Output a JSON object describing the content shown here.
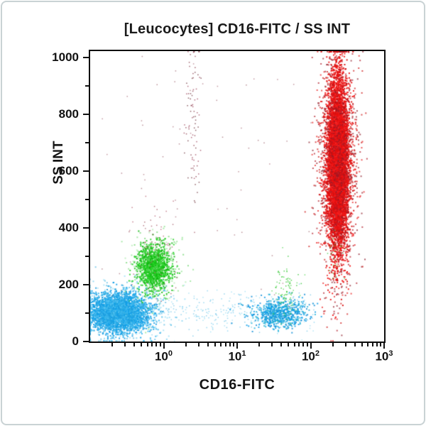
{
  "window": {
    "background": "#ffffff",
    "border_color": "#c9d2d4"
  },
  "colors": {
    "axis": "#111111",
    "text": "#1a1a1a",
    "frame": "#0d0d0d"
  },
  "chart_data": {
    "type": "scatter",
    "title": "[Leucocytes] CD16-FITC / SS INT",
    "xlabel": "CD16-FITC",
    "ylabel": "SS INT",
    "x_scale": "log",
    "x_range_log10": [
      -1,
      3
    ],
    "x_tick_base": "10",
    "x_tick_exponents": [
      0,
      1,
      2,
      3
    ],
    "ylim": [
      0,
      1023
    ],
    "y_ticks": [
      0,
      200,
      400,
      600,
      800,
      1000
    ],
    "y_minor_ticks": [
      100,
      300,
      500,
      700,
      900
    ],
    "grid": false,
    "legend": "none",
    "clusters": [
      {
        "name": "lymphocytes-core",
        "n": 3200,
        "size": 2,
        "alpha": 0.9,
        "x": {
          "dist": "gauss",
          "mean": -0.62,
          "sd": 0.2
        },
        "y": {
          "dist": "gauss",
          "mean": 100,
          "sd": 33
        },
        "shades": [
          "#0d9ee9",
          "#1e9fe0",
          "#3db8f0"
        ]
      },
      {
        "name": "lymphocytes-halo",
        "n": 600,
        "size": 2,
        "alpha": 0.55,
        "x": {
          "dist": "gauss",
          "mean": -0.55,
          "sd": 0.32
        },
        "y": {
          "dist": "gauss",
          "mean": 105,
          "sd": 52
        },
        "shades": [
          "#45c0ee",
          "#6fd2f4",
          "#2aa7db"
        ]
      },
      {
        "name": "monocytes-core",
        "n": 1100,
        "size": 2,
        "alpha": 0.9,
        "x": {
          "dist": "gauss",
          "mean": -0.13,
          "sd": 0.115
        },
        "y": {
          "dist": "gauss",
          "mean": 262,
          "sd": 40
        },
        "shades": [
          "#1ccb1c",
          "#2ed42e",
          "#0fb80f"
        ]
      },
      {
        "name": "monocytes-halo",
        "n": 280,
        "size": 2,
        "alpha": 0.5,
        "x": {
          "dist": "gauss",
          "mean": -0.12,
          "sd": 0.19
        },
        "y": {
          "dist": "gauss",
          "mean": 262,
          "sd": 62
        },
        "shades": [
          "#57d657",
          "#8ae28a",
          "#2ec42e"
        ]
      },
      {
        "name": "monocyte-dark-specks",
        "n": 70,
        "size": 1.5,
        "alpha": 0.6,
        "x": {
          "dist": "gauss",
          "mean": -0.12,
          "sd": 0.16
        },
        "y": {
          "dist": "gauss",
          "mean": 330,
          "sd": 80
        },
        "shades": [
          "#8a2a3a",
          "#a03048"
        ]
      },
      {
        "name": "nk-cells-core",
        "n": 650,
        "size": 2,
        "alpha": 0.85,
        "x": {
          "dist": "gauss",
          "mean": 1.57,
          "sd": 0.19
        },
        "y": {
          "dist": "gauss",
          "mean": 98,
          "sd": 26
        },
        "shades": [
          "#0d9ee9",
          "#2ab4d8",
          "#1590d8"
        ]
      },
      {
        "name": "nk-green-specks",
        "n": 90,
        "size": 1.5,
        "alpha": 0.8,
        "x": {
          "dist": "gauss",
          "mean": 1.67,
          "sd": 0.09
        },
        "y": {
          "dist": "gauss",
          "mean": 180,
          "sd": 52
        },
        "shades": [
          "#2bc42b",
          "#5ad65a"
        ]
      },
      {
        "name": "neutrophils-core",
        "n": 6500,
        "size": 2,
        "alpha": 0.95,
        "x": {
          "dist": "gauss",
          "mean": 2.37,
          "sd": 0.072
        },
        "y": {
          "dist": "gauss",
          "mean": 630,
          "sd": 150
        },
        "shades": [
          "#ee1111",
          "#f62222",
          "#da0e0e"
        ]
      },
      {
        "name": "neutrophils-halo",
        "n": 1600,
        "size": 2,
        "alpha": 0.7,
        "x": {
          "dist": "gauss",
          "mean": 2.37,
          "sd": 0.135
        },
        "y": {
          "dist": "gauss",
          "mean": 620,
          "sd": 205
        },
        "shades": [
          "#e81515",
          "#b01825",
          "#cc1010",
          "#8f1d2a"
        ]
      },
      {
        "name": "neutrophil-green-specks",
        "n": 25,
        "size": 1.5,
        "alpha": 0.7,
        "x": {
          "dist": "gauss",
          "mean": 2.33,
          "sd": 0.06
        },
        "y": {
          "dist": "gauss",
          "mean": 300,
          "sd": 45
        },
        "shades": [
          "#2bc42b",
          "#6cd86c"
        ]
      },
      {
        "name": "debris-column",
        "n": 85,
        "size": 1.5,
        "alpha": 0.7,
        "x": {
          "dist": "gauss",
          "mean": 0.4,
          "sd": 0.055
        },
        "y": {
          "dist": "gauss",
          "mean": 770,
          "sd": 165
        },
        "shades": [
          "#7a2535",
          "#93304a",
          "#611f2a"
        ]
      },
      {
        "name": "scattered-dark-events",
        "n": 70,
        "size": 1.5,
        "alpha": 0.5,
        "x": {
          "dist": "uniform",
          "min": -0.9,
          "max": 2.6
        },
        "y": {
          "dist": "uniform",
          "min": 80,
          "max": 1010
        },
        "shades": [
          "#8a3545",
          "#7a2535"
        ]
      },
      {
        "name": "low-ss-band",
        "n": 420,
        "size": 1.5,
        "alpha": 0.5,
        "x": {
          "dist": "uniform",
          "min": -1.0,
          "max": 2.05
        },
        "y": {
          "dist": "gauss",
          "mean": 108,
          "sd": 38
        },
        "shades": [
          "#35b4e8",
          "#66cbee",
          "#2aa7db"
        ]
      }
    ]
  }
}
